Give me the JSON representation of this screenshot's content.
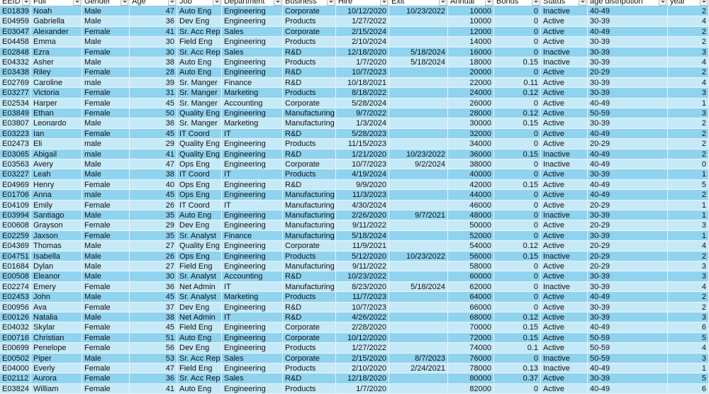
{
  "table": {
    "columns": [
      "EEID",
      "Full",
      "Gender",
      "Age",
      "Job",
      "Department",
      "Business",
      "Hire",
      "Exit",
      "Annual",
      "Bonus",
      "Status",
      "age distripution",
      "year"
    ],
    "rows": [
      [
        "E01839",
        "Noah",
        "Male",
        47,
        "Auto Eng",
        "Engineering",
        "Corporate",
        "10/12/2020",
        "10/23/2022",
        10000,
        0,
        "Inactive",
        "40-49",
        2
      ],
      [
        "E04959",
        "Gabriella",
        "Male",
        36,
        "Dev Eng",
        "Engineering",
        "Products",
        "1/27/2022",
        null,
        10000,
        0,
        "Active",
        "30-39",
        4
      ],
      [
        "E03047",
        "Alexander",
        "Female",
        41,
        "Sr. Acc Rep",
        "Sales",
        "Corporate",
        "2/15/2024",
        null,
        12000,
        0,
        "Active",
        "40-49",
        2
      ],
      [
        "E04458",
        "Emma",
        "Male",
        30,
        "Field Eng",
        "Engineering",
        "Products",
        "2/10/2024",
        null,
        14000,
        0,
        "Active",
        "30-39",
        2
      ],
      [
        "E02848",
        "Ezra",
        "Female",
        30,
        "Sr. Acc Rep",
        "Sales",
        "R&D",
        "12/18/2020",
        "5/18/2024",
        16000,
        0,
        "Inactive",
        "30-39",
        3
      ],
      [
        "E04332",
        "Asher",
        "Male",
        38,
        "Auto Eng",
        "Engineering",
        "Products",
        "1/7/2020",
        "5/18/2024",
        18000,
        0.15,
        "Inactive",
        "30-39",
        4
      ],
      [
        "E03438",
        "Riley",
        "Female",
        28,
        "Auto Eng",
        "Engineering",
        "R&D",
        "10/7/2023",
        null,
        20000,
        0,
        "Active",
        "20-29",
        2
      ],
      [
        "E02769",
        "Caroline",
        "male",
        39,
        "Sr. Manger",
        "Finance",
        "R&D",
        "10/18/2021",
        null,
        22000,
        0.11,
        "Active",
        "30-39",
        4
      ],
      [
        "E03277",
        "Victoria",
        "Female",
        31,
        "Sr. Manger",
        "Marketing",
        "Products",
        "8/18/2022",
        null,
        24000,
        0.12,
        "Active",
        "30-39",
        3
      ],
      [
        "E02534",
        "Harper",
        "Female",
        45,
        "Sr. Manger",
        "Accounting",
        "Corporate",
        "5/28/2024",
        null,
        26000,
        0,
        "Active",
        "40-49",
        1
      ],
      [
        "E03849",
        "Ethan",
        "Female",
        50,
        "Quality Eng",
        "Engineering",
        "Manufacturing",
        "9/7/2022",
        null,
        28000,
        0.12,
        "Active",
        "50-59",
        3
      ],
      [
        "E03807",
        "Leonardo",
        "Male",
        36,
        "Sr. Manger",
        "Marketing",
        "Manufacturing",
        "1/3/2024",
        null,
        30000,
        0.15,
        "Active",
        "30-39",
        2
      ],
      [
        "E03223",
        "Ian",
        "Female",
        45,
        "IT Coord",
        "IT",
        "R&D",
        "5/28/2023",
        null,
        32000,
        0,
        "Active",
        "40-49",
        2
      ],
      [
        "E02473",
        "Eli",
        "male",
        29,
        "Quality Eng",
        "Engineering",
        "Products",
        "11/15/2023",
        null,
        34000,
        0,
        "Active",
        "20-29",
        2
      ],
      [
        "E03065",
        "Abigail",
        "male",
        41,
        "Quality Eng",
        "Engineering",
        "R&D",
        "1/21/2020",
        "10/23/2022",
        36000,
        0.15,
        "Inactive",
        "40-49",
        2
      ],
      [
        "E03563",
        "Avery",
        "Male",
        47,
        "Ops Eng",
        "Engineering",
        "Corporate",
        "10/7/2023",
        "9/2/2024",
        38000,
        0,
        "Inactive",
        "40-49",
        0
      ],
      [
        "E03227",
        "Leah",
        "Male",
        38,
        "IT Coord",
        "IT",
        "Products",
        "4/19/2024",
        null,
        40000,
        0,
        "Active",
        "30-39",
        1
      ],
      [
        "E04969",
        "Henry",
        "Female",
        40,
        "Ops Eng",
        "Engineering",
        "R&D",
        "9/9/2020",
        null,
        42000,
        0.15,
        "Active",
        "40-49",
        5
      ],
      [
        "E01706",
        "Anna",
        "male",
        45,
        "Ops Eng",
        "Engineering",
        "Manufacturing",
        "11/3/2023",
        null,
        44000,
        0,
        "Active",
        "40-49",
        2
      ],
      [
        "E04109",
        "Emily",
        "Female",
        26,
        "IT Coord",
        "IT",
        "Manufacturing",
        "4/30/2024",
        null,
        46000,
        0,
        "Active",
        "20-29",
        1
      ],
      [
        "E03994",
        "Santiago",
        "Male",
        35,
        "Auto Eng",
        "Engineering",
        "Manufacturing",
        "2/26/2020",
        "9/7/2021",
        48000,
        0,
        "Inactive",
        "30-39",
        1
      ],
      [
        "E00608",
        "Grayson",
        "Female",
        29,
        "Dev Eng",
        "Engineering",
        "Manufacturing",
        "9/11/2022",
        null,
        50000,
        0,
        "Active",
        "20-29",
        3
      ],
      [
        "E02259",
        "Jaxson",
        "Female",
        35,
        "Sr. Analyst",
        "Finance",
        "Manufacturing",
        "5/18/2024",
        null,
        52000,
        0,
        "Active",
        "30-39",
        1
      ],
      [
        "E04369",
        "Thomas",
        "Male",
        27,
        "Quality Eng",
        "Engineering",
        "Corporate",
        "11/9/2021",
        null,
        54000,
        0.12,
        "Active",
        "20-29",
        4
      ],
      [
        "E04751",
        "Isabella",
        "Male",
        26,
        "Ops Eng",
        "Engineering",
        "Products",
        "5/12/2020",
        "10/23/2022",
        56000,
        0.15,
        "Inactive",
        "20-29",
        2
      ],
      [
        "E01684",
        "Dylan",
        "Male",
        27,
        "Field Eng",
        "Engineering",
        "Manufacturing",
        "9/11/2022",
        null,
        58000,
        0,
        "Active",
        "20-29",
        3
      ],
      [
        "E00508",
        "Eleanor",
        "Male",
        30,
        "Sr. Analyst",
        "Accounting",
        "R&D",
        "10/23/2022",
        null,
        60000,
        0,
        "Active",
        "30-39",
        3
      ],
      [
        "E02274",
        "Emery",
        "Female",
        36,
        "Net Admin",
        "IT",
        "Manufacturing",
        "8/23/2020",
        "5/18/2024",
        62000,
        0,
        "Inactive",
        "30-39",
        4
      ],
      [
        "E02453",
        "John",
        "Male",
        45,
        "Sr. Analyst",
        "Marketing",
        "Products",
        "11/7/2023",
        null,
        64000,
        0,
        "Active",
        "40-49",
        2
      ],
      [
        "E00956",
        "Ava",
        "Female",
        37,
        "Dev Eng",
        "Engineering",
        "R&D",
        "10/7/2023",
        null,
        66000,
        0,
        "Active",
        "30-39",
        2
      ],
      [
        "E00126",
        "Natalia",
        "Male",
        38,
        "Net Admin",
        "IT",
        "R&D",
        "4/26/2022",
        null,
        68000,
        0.12,
        "Active",
        "30-39",
        3
      ],
      [
        "E04032",
        "Skylar",
        "Female",
        45,
        "Field Eng",
        "Engineering",
        "Corporate",
        "2/28/2020",
        null,
        70000,
        0.15,
        "Active",
        "40-49",
        6
      ],
      [
        "E00716",
        "Christian",
        "Female",
        51,
        "Auto Eng",
        "Engineering",
        "Corporate",
        "10/12/2020",
        null,
        72000,
        0.15,
        "Active",
        "50-59",
        5
      ],
      [
        "E00699",
        "Penelope",
        "Female",
        56,
        "Dev Eng",
        "Engineering",
        "Products",
        "1/27/2022",
        null,
        74000,
        0.1,
        "Active",
        "50-59",
        4
      ],
      [
        "E00502",
        "Piper",
        "Male",
        53,
        "Sr. Acc Rep",
        "Sales",
        "Corporate",
        "2/15/2020",
        "8/7/2023",
        76000,
        0,
        "Inactive",
        "50-59",
        3
      ],
      [
        "E04000",
        "Everly",
        "Female",
        47,
        "Field Eng",
        "Engineering",
        "Products",
        "2/10/2020",
        "2/24/2021",
        78000,
        0.13,
        "Inactive",
        "40-49",
        1
      ],
      [
        "E02112",
        "Aurora",
        "Female",
        36,
        "Sr. Acc Rep",
        "Sales",
        "R&D",
        "12/18/2020",
        null,
        80000,
        0.37,
        "Active",
        "30-39",
        5
      ],
      [
        "E03824",
        "William",
        "Female",
        41,
        "Auto Eng",
        "Engineering",
        "Products",
        "1/7/2020",
        null,
        82000,
        0,
        "Active",
        "40-49",
        6
      ]
    ]
  }
}
